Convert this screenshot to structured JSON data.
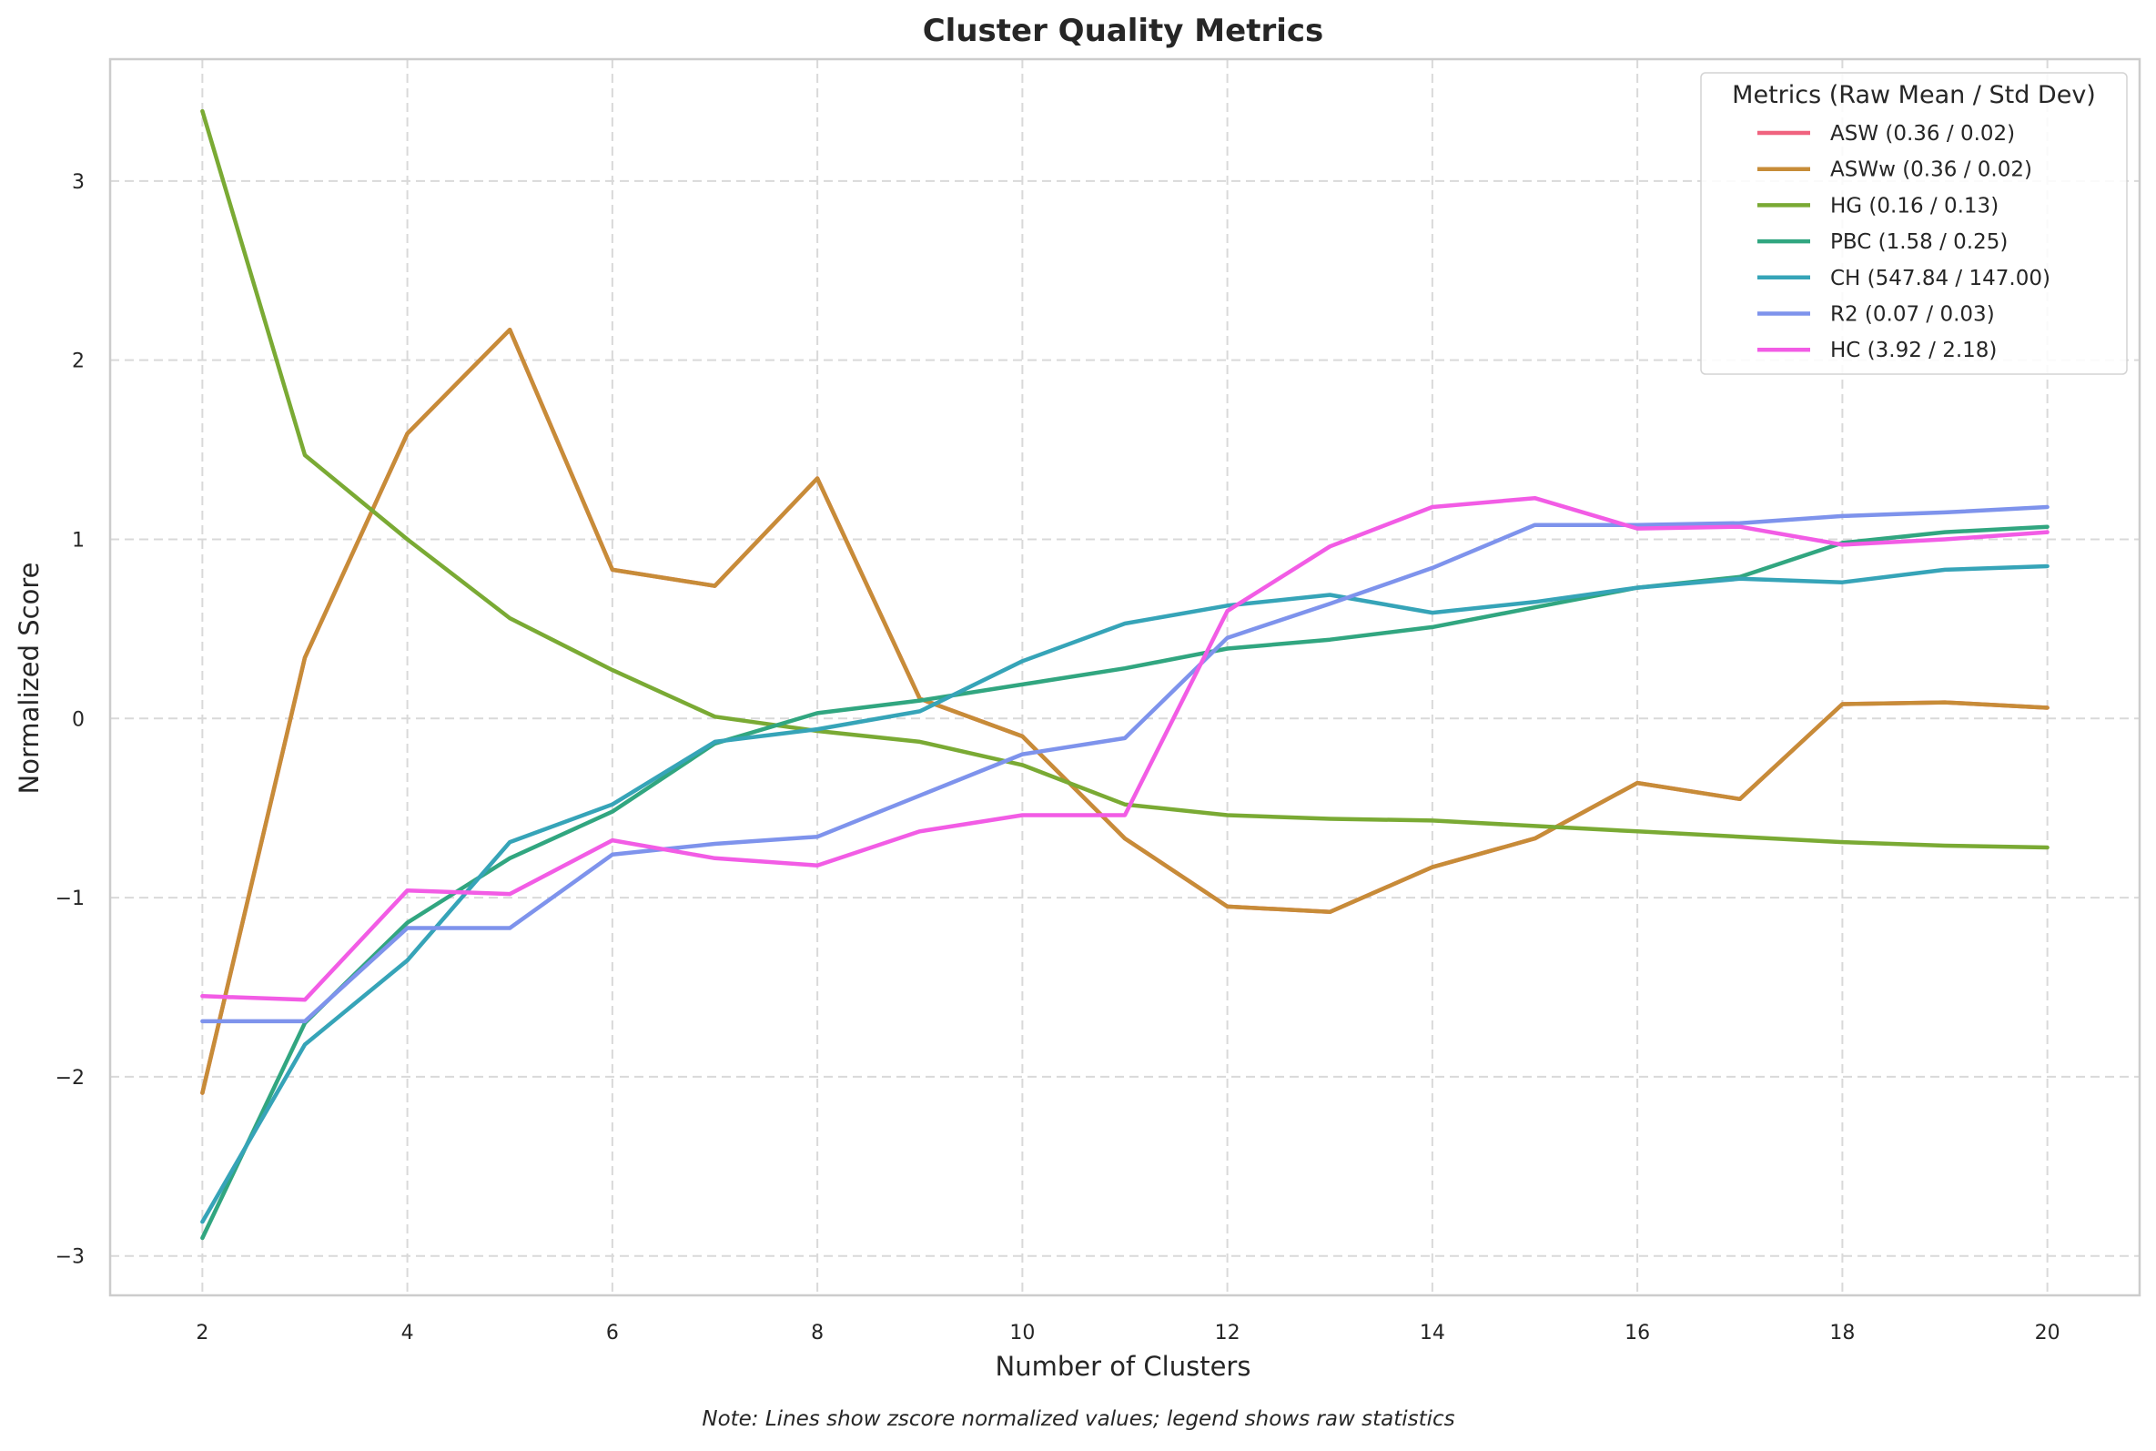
{
  "chart_data": {
    "type": "line",
    "title": "Cluster Quality Metrics",
    "xlabel": "Number of Clusters",
    "ylabel": "Normalized Score",
    "note": "Note: Lines show zscore normalized values; legend shows raw statistics",
    "legend_title": "Metrics (Raw Mean / Std Dev)",
    "legend_position": "top-right",
    "grid": true,
    "xlim": [
      1.1,
      20.9
    ],
    "ylim": [
      -3.22,
      3.68
    ],
    "xticks": [
      2,
      4,
      6,
      8,
      10,
      12,
      14,
      16,
      18,
      20
    ],
    "yticks": [
      -3,
      -2,
      -1,
      0,
      1,
      2,
      3
    ],
    "ytick_labels": [
      "−3",
      "−2",
      "−1",
      "0",
      "1",
      "2",
      "3"
    ],
    "x": [
      2,
      3,
      4,
      5,
      6,
      7,
      8,
      9,
      10,
      11,
      12,
      13,
      14,
      15,
      16,
      17,
      18,
      19,
      20
    ],
    "series": [
      {
        "name": "ASW (0.36 / 0.02)",
        "color": "#f0637f",
        "values": [
          -2.09,
          0.34,
          1.59,
          2.17,
          0.83,
          0.74,
          1.34,
          0.11,
          -0.1,
          -0.67,
          -1.05,
          -1.08,
          -0.83,
          -0.67,
          -0.36,
          -0.45,
          0.08,
          0.09,
          0.06
        ]
      },
      {
        "name": "ASWw (0.36 / 0.02)",
        "color": "#c78c38",
        "values": [
          -2.09,
          0.34,
          1.59,
          2.17,
          0.83,
          0.74,
          1.34,
          0.11,
          -0.1,
          -0.67,
          -1.05,
          -1.08,
          -0.83,
          -0.67,
          -0.36,
          -0.45,
          0.08,
          0.09,
          0.06
        ]
      },
      {
        "name": "HG (0.16 / 0.13)",
        "color": "#7aaa34",
        "values": [
          3.39,
          1.47,
          1.0,
          0.56,
          0.27,
          0.01,
          -0.07,
          -0.13,
          -0.26,
          -0.48,
          -0.54,
          -0.56,
          -0.57,
          -0.6,
          -0.63,
          -0.66,
          -0.69,
          -0.71,
          -0.72
        ]
      },
      {
        "name": "PBC (1.58 / 0.25)",
        "color": "#31a680",
        "values": [
          -2.9,
          -1.7,
          -1.14,
          -0.78,
          -0.52,
          -0.14,
          0.03,
          0.1,
          0.19,
          0.28,
          0.39,
          0.44,
          0.51,
          0.62,
          0.73,
          0.79,
          0.98,
          1.04,
          1.07
        ]
      },
      {
        "name": "CH (547.84 / 147.00)",
        "color": "#36a4b8",
        "values": [
          -2.81,
          -1.82,
          -1.35,
          -0.69,
          -0.48,
          -0.13,
          -0.06,
          0.04,
          0.32,
          0.53,
          0.63,
          0.69,
          0.59,
          0.65,
          0.73,
          0.78,
          0.76,
          0.83,
          0.85
        ]
      },
      {
        "name": "R2 (0.07 / 0.03)",
        "color": "#7e93ec",
        "values": [
          -1.69,
          -1.69,
          -1.17,
          -1.17,
          -0.76,
          -0.7,
          -0.66,
          -0.43,
          -0.2,
          -0.11,
          0.45,
          0.64,
          0.84,
          1.08,
          1.08,
          1.09,
          1.13,
          1.15,
          1.18
        ]
      },
      {
        "name": "HC (3.92 / 2.18)",
        "color": "#f25ce5",
        "values": [
          -1.55,
          -1.57,
          -0.96,
          -0.98,
          -0.68,
          -0.78,
          -0.82,
          -0.63,
          -0.54,
          -0.54,
          0.6,
          0.96,
          1.18,
          1.23,
          1.06,
          1.07,
          0.97,
          1.0,
          1.04
        ]
      }
    ]
  }
}
